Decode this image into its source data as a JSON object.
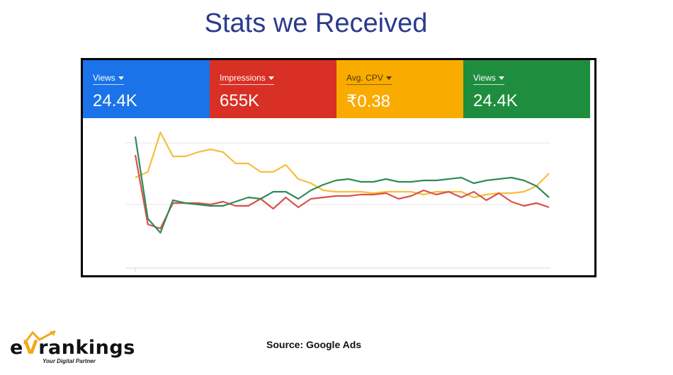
{
  "slide": {
    "title": "Stats we Received",
    "source": "Source: Google Ads"
  },
  "logo": {
    "letter_e": "e",
    "letter_v": "V",
    "word": "rankings",
    "tagline": "Your Digital Partner"
  },
  "cards": [
    {
      "metric": "Views",
      "value": "24.4K",
      "color": "#1a73e8"
    },
    {
      "metric": "Impressions",
      "value": "655K",
      "color": "#d93025"
    },
    {
      "metric": "Avg. CPV",
      "value": "₹0.38",
      "color": "#f9ab00"
    },
    {
      "metric": "Views",
      "value": "24.4K",
      "color": "#1e8e3e"
    }
  ],
  "chart_data": {
    "type": "line",
    "ylim": [
      0,
      100
    ],
    "x": [
      1,
      2,
      3,
      4,
      5,
      6,
      7,
      8,
      9,
      10,
      11,
      12,
      13,
      14,
      15,
      16,
      17,
      18,
      19,
      20,
      21,
      22,
      23,
      24,
      25,
      26,
      27,
      28,
      29,
      30,
      31,
      32,
      33,
      34
    ],
    "series": [
      {
        "color": "#f6bf3b",
        "values": [
          58,
          62,
          90,
          73,
          73,
          76,
          78,
          76,
          68,
          68,
          62,
          62,
          67,
          57,
          54,
          49,
          48,
          48,
          48,
          47,
          48,
          48,
          48,
          46,
          48,
          48,
          48,
          44,
          46,
          47,
          47,
          48,
          52,
          61
        ]
      },
      {
        "color": "#d9534f",
        "values": [
          74,
          25,
          22,
          40,
          40,
          40,
          39,
          41,
          38,
          38,
          43,
          36,
          44,
          37,
          43,
          44,
          45,
          45,
          46,
          46,
          47,
          43,
          45,
          49,
          46,
          48,
          44,
          48,
          42,
          47,
          41,
          38,
          40,
          37
        ]
      },
      {
        "color": "#2e8b57",
        "values": [
          87,
          29,
          19,
          42,
          40,
          39,
          38,
          38,
          41,
          44,
          43,
          48,
          48,
          43,
          49,
          53,
          56,
          57,
          55,
          55,
          57,
          55,
          55,
          56,
          56,
          57,
          58,
          54,
          56,
          57,
          58,
          56,
          52,
          44
        ]
      }
    ]
  }
}
